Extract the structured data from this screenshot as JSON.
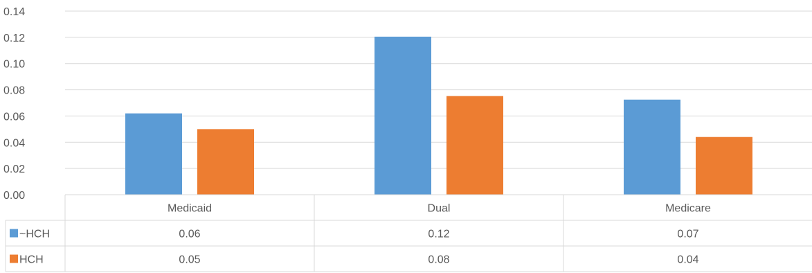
{
  "chart_data": {
    "type": "bar",
    "categories": [
      "Medicaid",
      "Dual",
      "Medicare"
    ],
    "series": [
      {
        "name": "~HCH",
        "values": [
          0.062,
          0.1205,
          0.0725
        ],
        "table_labels": [
          "0.06",
          "0.12",
          "0.07"
        ],
        "color": "#5B9BD5"
      },
      {
        "name": "HCH",
        "values": [
          0.05,
          0.0752,
          0.044
        ],
        "table_labels": [
          "0.05",
          "0.08",
          "0.04"
        ],
        "color": "#ED7D31"
      }
    ],
    "yticks": [
      "0.00",
      "0.02",
      "0.04",
      "0.06",
      "0.08",
      "0.10",
      "0.12",
      "0.14"
    ],
    "ylim": [
      0,
      0.14
    ],
    "grid": true,
    "legend": "data-table",
    "title": "",
    "xlabel": "",
    "ylabel": ""
  }
}
